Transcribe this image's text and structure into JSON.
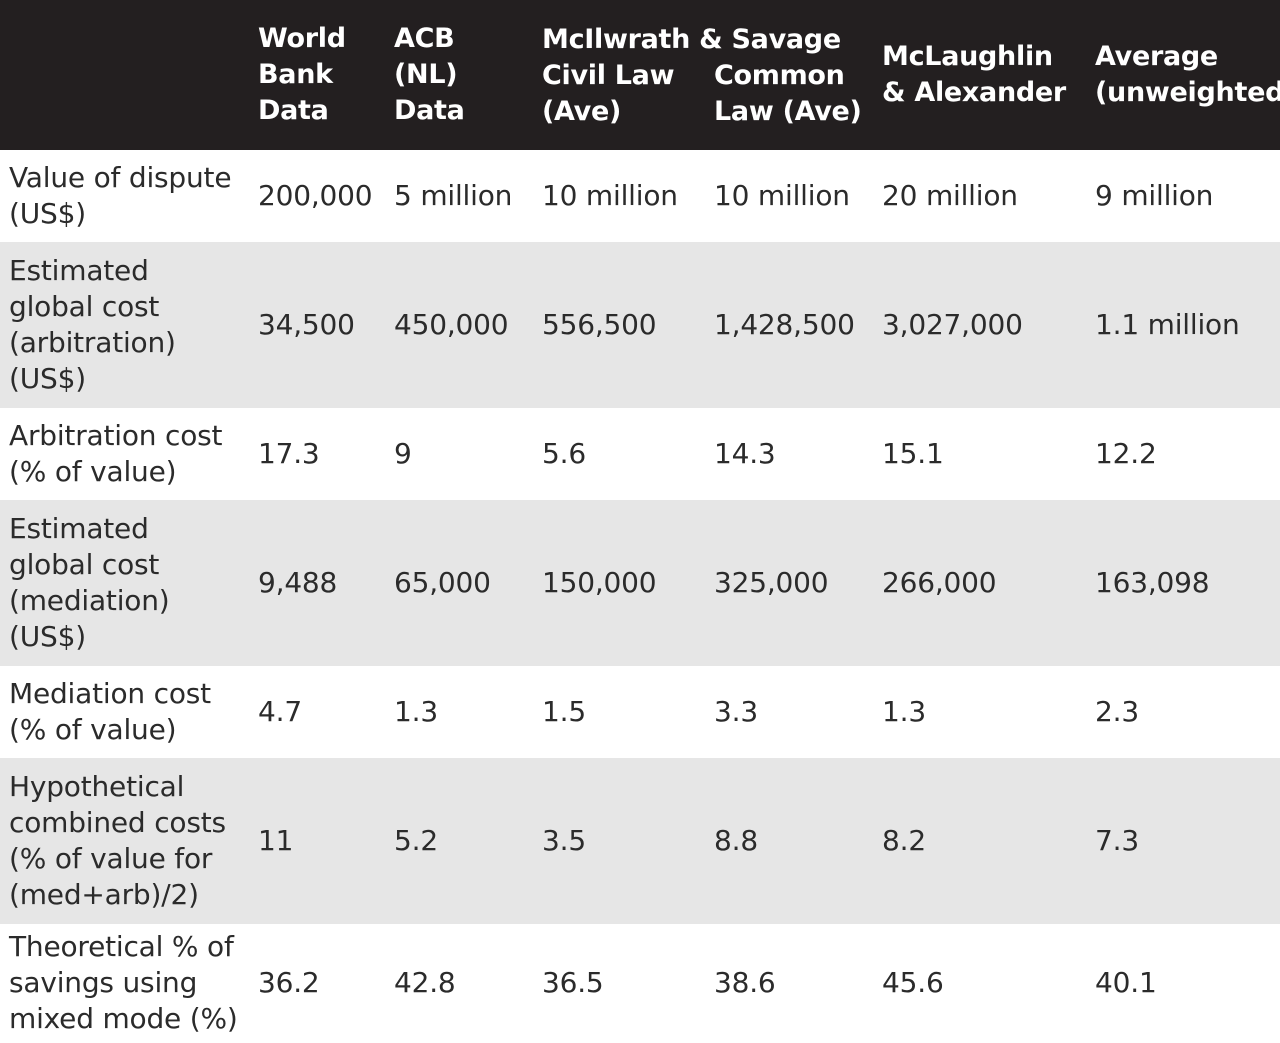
{
  "header": {
    "col1": "World\nBank\nData",
    "col2": "ACB\n(NL)\nData",
    "group": "McIlwrath & Savage",
    "col3": "Civil Law\n(Ave)",
    "col4": "Common\nLaw (Ave)",
    "col5": "McLaughlin\n& Alexander",
    "col6": "Average\n(unweighted)"
  },
  "rows": [
    {
      "label": "Value of dispute\n(US$)",
      "cells": [
        "200,000",
        "5 million",
        "10 million",
        "10 million",
        "20 million",
        "9 million"
      ]
    },
    {
      "label": "Estimated\nglobal cost\n(arbitration)\n(US$)",
      "cells": [
        "34,500",
        "450,000",
        "556,500",
        "1,428,500",
        "3,027,000",
        "1.1 million"
      ]
    },
    {
      "label": "Arbitration cost\n(% of value)",
      "cells": [
        "17.3",
        "9",
        "5.6",
        "14.3",
        "15.1",
        "12.2"
      ]
    },
    {
      "label": "Estimated\nglobal cost\n(mediation)\n(US$)",
      "cells": [
        "9,488",
        "65,000",
        "150,000",
        "325,000",
        "266,000",
        "163,098"
      ]
    },
    {
      "label": "Mediation cost\n(% of value)",
      "cells": [
        "4.7",
        "1.3",
        "1.5",
        "3.3",
        "1.3",
        "2.3"
      ]
    },
    {
      "label": "Hypothetical\ncombined costs\n(% of value for\n(med+arb)/2)",
      "cells": [
        "11",
        "5.2",
        "3.5",
        "8.8",
        "8.2",
        "7.3"
      ]
    },
    {
      "label": "Theoretical % of\nsavings using\nmixed mode (%)",
      "cells": [
        "36.2",
        "42.8",
        "36.5",
        "38.6",
        "45.6",
        "40.1"
      ]
    }
  ],
  "colors": {
    "header_bg": "#231f20",
    "header_text": "#ffffff",
    "stripe_grey": "#e6e6e6",
    "body_text": "#2b2b2b"
  }
}
